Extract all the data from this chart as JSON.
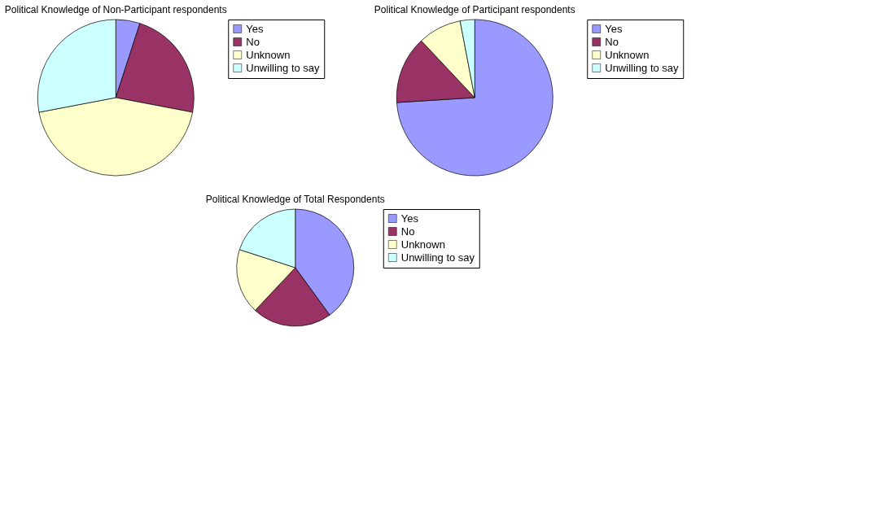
{
  "chart_data": [
    {
      "type": "pie",
      "title": "Political Knowledge of Non-Participant respondents",
      "categories": [
        "Yes",
        "No",
        "Unknown",
        "Unwilling to say"
      ],
      "values": [
        5,
        23,
        44,
        28
      ],
      "colors": [
        "#9999ff",
        "#993366",
        "#ffffcc",
        "#ccffff"
      ],
      "legend": "right"
    },
    {
      "type": "pie",
      "title": "Political Knowledge of Participant respondents",
      "categories": [
        "Yes",
        "No",
        "Unknown",
        "Unwilling to say"
      ],
      "values": [
        74,
        14,
        9,
        3
      ],
      "colors": [
        "#9999ff",
        "#993366",
        "#ffffcc",
        "#ccffff"
      ],
      "legend": "right"
    },
    {
      "type": "pie",
      "title": "Political Knowledge of Total Respondents",
      "categories": [
        "Yes",
        "No",
        "Unknown",
        "Unwilling to say"
      ],
      "values": [
        40,
        22,
        18,
        20
      ],
      "colors": [
        "#9999ff",
        "#993366",
        "#ffffcc",
        "#ccffff"
      ],
      "legend": "right"
    }
  ]
}
